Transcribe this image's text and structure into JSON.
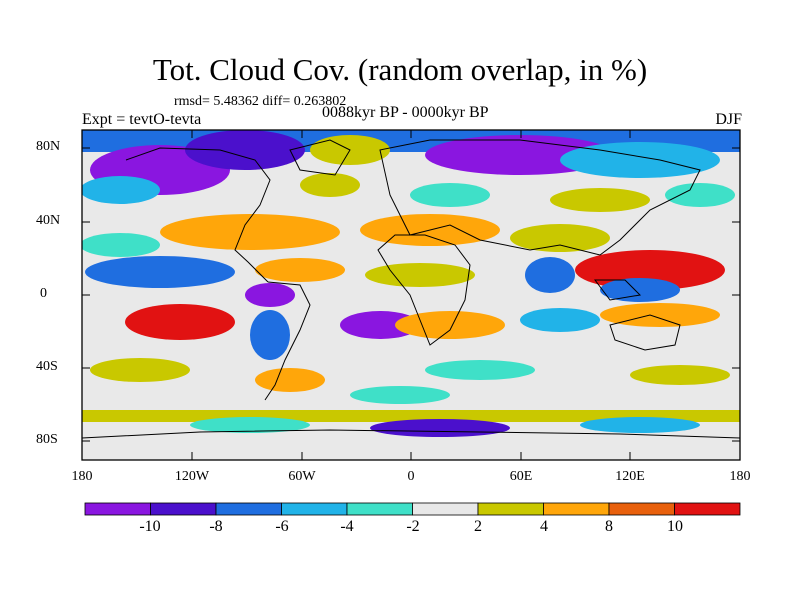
{
  "title": "Tot. Cloud Cov. (random overlap, in %)",
  "stats": "rmsd= 5.48362 diff= 0.263802",
  "experiment": "Expt = tevtO-tevta",
  "period": "0088kyr BP - 0000kyr BP",
  "season": "DJF",
  "lat_ticks": [
    "80N",
    "40N",
    "0",
    "40S",
    "80S"
  ],
  "lon_ticks": [
    "180",
    "120W",
    "60W",
    "0",
    "60E",
    "120E",
    "180"
  ],
  "colorbar": {
    "labels": [
      "-10",
      "-8",
      "-6",
      "-4",
      "-2",
      "2",
      "4",
      "8",
      "10"
    ],
    "colors": [
      "#8a16e0",
      "#4b10cc",
      "#1f6ee0",
      "#21b3e8",
      "#3fe0c8",
      "#e8e8e8",
      "#c9c800",
      "#ffa60a",
      "#e8600c",
      "#e11212"
    ]
  },
  "map": {
    "background": "#e9e9e9",
    "axes_lat_range": [
      -90,
      90
    ],
    "axes_lon_range": [
      -180,
      180
    ]
  }
}
